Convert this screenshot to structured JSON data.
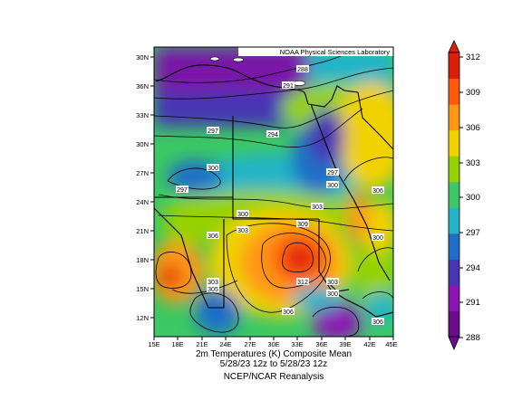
{
  "header": {
    "credit": "NOAA Physical Sciences Laboratory"
  },
  "map": {
    "lon_ticks": [
      "15E",
      "18E",
      "21E",
      "24E",
      "27E",
      "30E",
      "33E",
      "36E",
      "39E",
      "42E",
      "45E"
    ],
    "lat_ticks": [
      "30N",
      "36N",
      "33N",
      "30N",
      "27N",
      "24N",
      "21N",
      "18N",
      "15N",
      "12N"
    ],
    "contour_labels": [
      "288",
      "291",
      "297",
      "294",
      "300",
      "297",
      "297",
      "300",
      "306",
      "300",
      "303",
      "309",
      "303",
      "306",
      "300",
      "303",
      "312",
      "305",
      "303",
      "300",
      "306",
      "306"
    ]
  },
  "colorbar": {
    "labels": [
      "312",
      "309",
      "306",
      "303",
      "300",
      "297",
      "294",
      "291",
      "288"
    ],
    "colors": [
      "#6a0a8c",
      "#8c14b4",
      "#4636b4",
      "#1e6ec8",
      "#23b4c8",
      "#3cc864",
      "#96d200",
      "#f0d200",
      "#ff9614",
      "#ff5a0a",
      "#dc1e0a"
    ]
  },
  "caption": {
    "line1": "2m Temperatures (K)    Composite Mean",
    "line2": "5/28/23 12z  to 5/28/23 12z",
    "line3": "NCEP/NCAR Reanalysis"
  }
}
